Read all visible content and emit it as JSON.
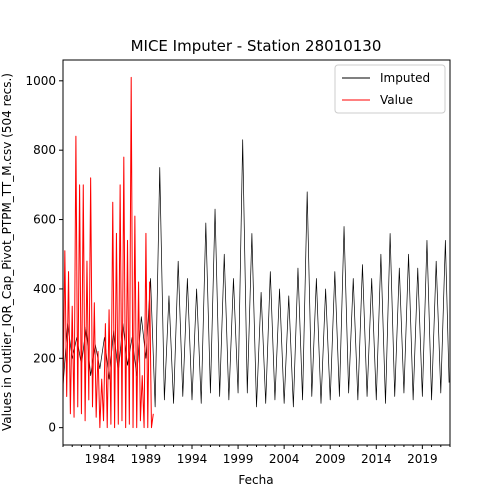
{
  "chart_data": {
    "type": "line",
    "title": "MICE Imputer - Station 28010130",
    "xlabel": "Fecha",
    "ylabel": "Values in Outlier_IQR_Cap_Pivot_PTPM_TT_M.csv (504 recs.)",
    "xlim": [
      1980.0,
      2022.0
    ],
    "ylim": [
      -50,
      1060
    ],
    "xticks": [
      1984,
      1989,
      1994,
      1999,
      2004,
      2009,
      2014,
      2019
    ],
    "yticks": [
      0,
      200,
      400,
      600,
      800,
      1000
    ],
    "legend": {
      "position": "top-right"
    },
    "grid": false,
    "series": [
      {
        "name": "Imputed",
        "color": "#000000",
        "x": [
          1980.0,
          1980.5,
          1981.0,
          1981.5,
          1982.0,
          1982.5,
          1983.0,
          1983.5,
          1984.0,
          1984.5,
          1985.0,
          1985.5,
          1986.0,
          1986.5,
          1987.0,
          1987.5,
          1988.0,
          1988.5,
          1989.0,
          1989.5,
          1990.0,
          1990.5,
          1991.0,
          1991.5,
          1992.0,
          1992.5,
          1993.0,
          1993.5,
          1994.0,
          1994.5,
          1995.0,
          1995.5,
          1996.0,
          1996.5,
          1997.0,
          1997.5,
          1998.0,
          1998.5,
          1999.0,
          1999.5,
          2000.0,
          2000.5,
          2001.0,
          2001.5,
          2002.0,
          2002.5,
          2003.0,
          2003.5,
          2004.0,
          2004.5,
          2005.0,
          2005.5,
          2006.0,
          2006.5,
          2007.0,
          2007.5,
          2008.0,
          2008.5,
          2009.0,
          2009.5,
          2010.0,
          2010.5,
          2011.0,
          2011.5,
          2012.0,
          2012.5,
          2013.0,
          2013.5,
          2014.0,
          2014.5,
          2015.0,
          2015.5,
          2016.0,
          2016.5,
          2017.0,
          2017.5,
          2018.0,
          2018.5,
          2019.0,
          2019.5,
          2020.0,
          2020.5,
          2021.0,
          2021.5,
          2021.9
        ],
        "y": [
          120,
          300,
          200,
          260,
          180,
          290,
          150,
          240,
          170,
          260,
          140,
          280,
          160,
          300,
          180,
          260,
          150,
          320,
          200,
          430,
          60,
          750,
          80,
          380,
          70,
          480,
          90,
          430,
          80,
          400,
          70,
          590,
          100,
          630,
          90,
          500,
          80,
          430,
          100,
          830,
          100,
          560,
          60,
          390,
          70,
          450,
          80,
          400,
          70,
          380,
          60,
          460,
          80,
          680,
          90,
          430,
          70,
          400,
          80,
          450,
          90,
          580,
          100,
          430,
          80,
          470,
          90,
          430,
          80,
          500,
          70,
          560,
          90,
          460,
          100,
          500,
          80,
          460,
          90,
          540,
          80,
          480,
          100,
          540,
          130
        ]
      },
      {
        "name": "Value",
        "color": "#ff0000",
        "x": [
          1980.0,
          1980.2,
          1980.4,
          1980.6,
          1980.8,
          1981.0,
          1981.2,
          1981.4,
          1981.6,
          1981.8,
          1982.0,
          1982.2,
          1982.4,
          1982.6,
          1982.8,
          1983.0,
          1983.2,
          1983.4,
          1983.6,
          1983.8,
          1984.0,
          1984.2,
          1984.4,
          1984.6,
          1984.8,
          1985.0,
          1985.2,
          1985.4,
          1985.6,
          1985.8,
          1986.0,
          1986.2,
          1986.4,
          1986.6,
          1986.8,
          1987.0,
          1987.2,
          1987.4,
          1987.6,
          1987.8,
          1988.0,
          1988.2,
          1988.4,
          1988.6,
          1988.8,
          1989.0,
          1989.2,
          1989.4,
          1989.6,
          1989.8
        ],
        "y": [
          80,
          510,
          90,
          450,
          40,
          350,
          30,
          840,
          60,
          700,
          40,
          700,
          20,
          480,
          80,
          720,
          60,
          360,
          30,
          220,
          0,
          140,
          20,
          300,
          0,
          340,
          10,
          650,
          0,
          560,
          10,
          700,
          20,
          780,
          0,
          540,
          10,
          1010,
          0,
          610,
          0,
          420,
          20,
          150,
          0,
          560,
          0,
          420,
          0,
          40
        ]
      }
    ]
  }
}
